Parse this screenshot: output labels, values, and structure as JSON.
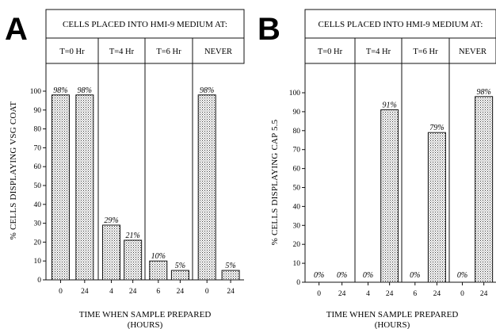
{
  "chart_data": [
    {
      "type": "bar",
      "panel_letter": "A",
      "header": "CELLS PLACED INTO HMI-9 MEDIUM AT:",
      "conditions": [
        "T=0 Hr",
        "T=4 Hr",
        "T=6 Hr",
        "NEVER"
      ],
      "categories": [
        "0",
        "24",
        "4",
        "24",
        "6",
        "24",
        "0",
        "24"
      ],
      "values": [
        98,
        98,
        29,
        21,
        10,
        5,
        98,
        5
      ],
      "value_labels": [
        "98%",
        "98%",
        "29%",
        "21%",
        "10%",
        "5%",
        "98%",
        "5%"
      ],
      "ylabel": "% CELLS DISPLAYING VSG COAT",
      "xlabel": "TIME WHEN SAMPLE PREPARED",
      "xlabel_units": "(HOURS)",
      "ylim": [
        0,
        100
      ],
      "yticks": [
        0,
        10,
        20,
        30,
        40,
        50,
        60,
        70,
        80,
        90,
        100
      ],
      "bar_pattern": "stippled"
    },
    {
      "type": "bar",
      "panel_letter": "B",
      "header": "CELLS PLACED INTO HMI-9 MEDIUM AT:",
      "conditions": [
        "T=0 Hr",
        "T=4 Hr",
        "T=6 Hr",
        "NEVER"
      ],
      "categories": [
        "0",
        "24",
        "4",
        "24",
        "6",
        "24",
        "0",
        "24"
      ],
      "values": [
        0,
        0,
        0,
        91,
        0,
        79,
        0,
        98
      ],
      "value_labels": [
        "0%",
        "0%",
        "0%",
        "91%",
        "0%",
        "79%",
        "0%",
        "98%"
      ],
      "ylabel": "% CELLS DISPLAYING CAP 5.5",
      "xlabel": "TIME WHEN SAMPLE PREPARED",
      "xlabel_units": "(HOURS)",
      "ylim": [
        0,
        100
      ],
      "yticks": [
        0,
        10,
        20,
        30,
        40,
        50,
        60,
        70,
        80,
        90,
        100
      ],
      "bar_pattern": "stippled"
    }
  ]
}
